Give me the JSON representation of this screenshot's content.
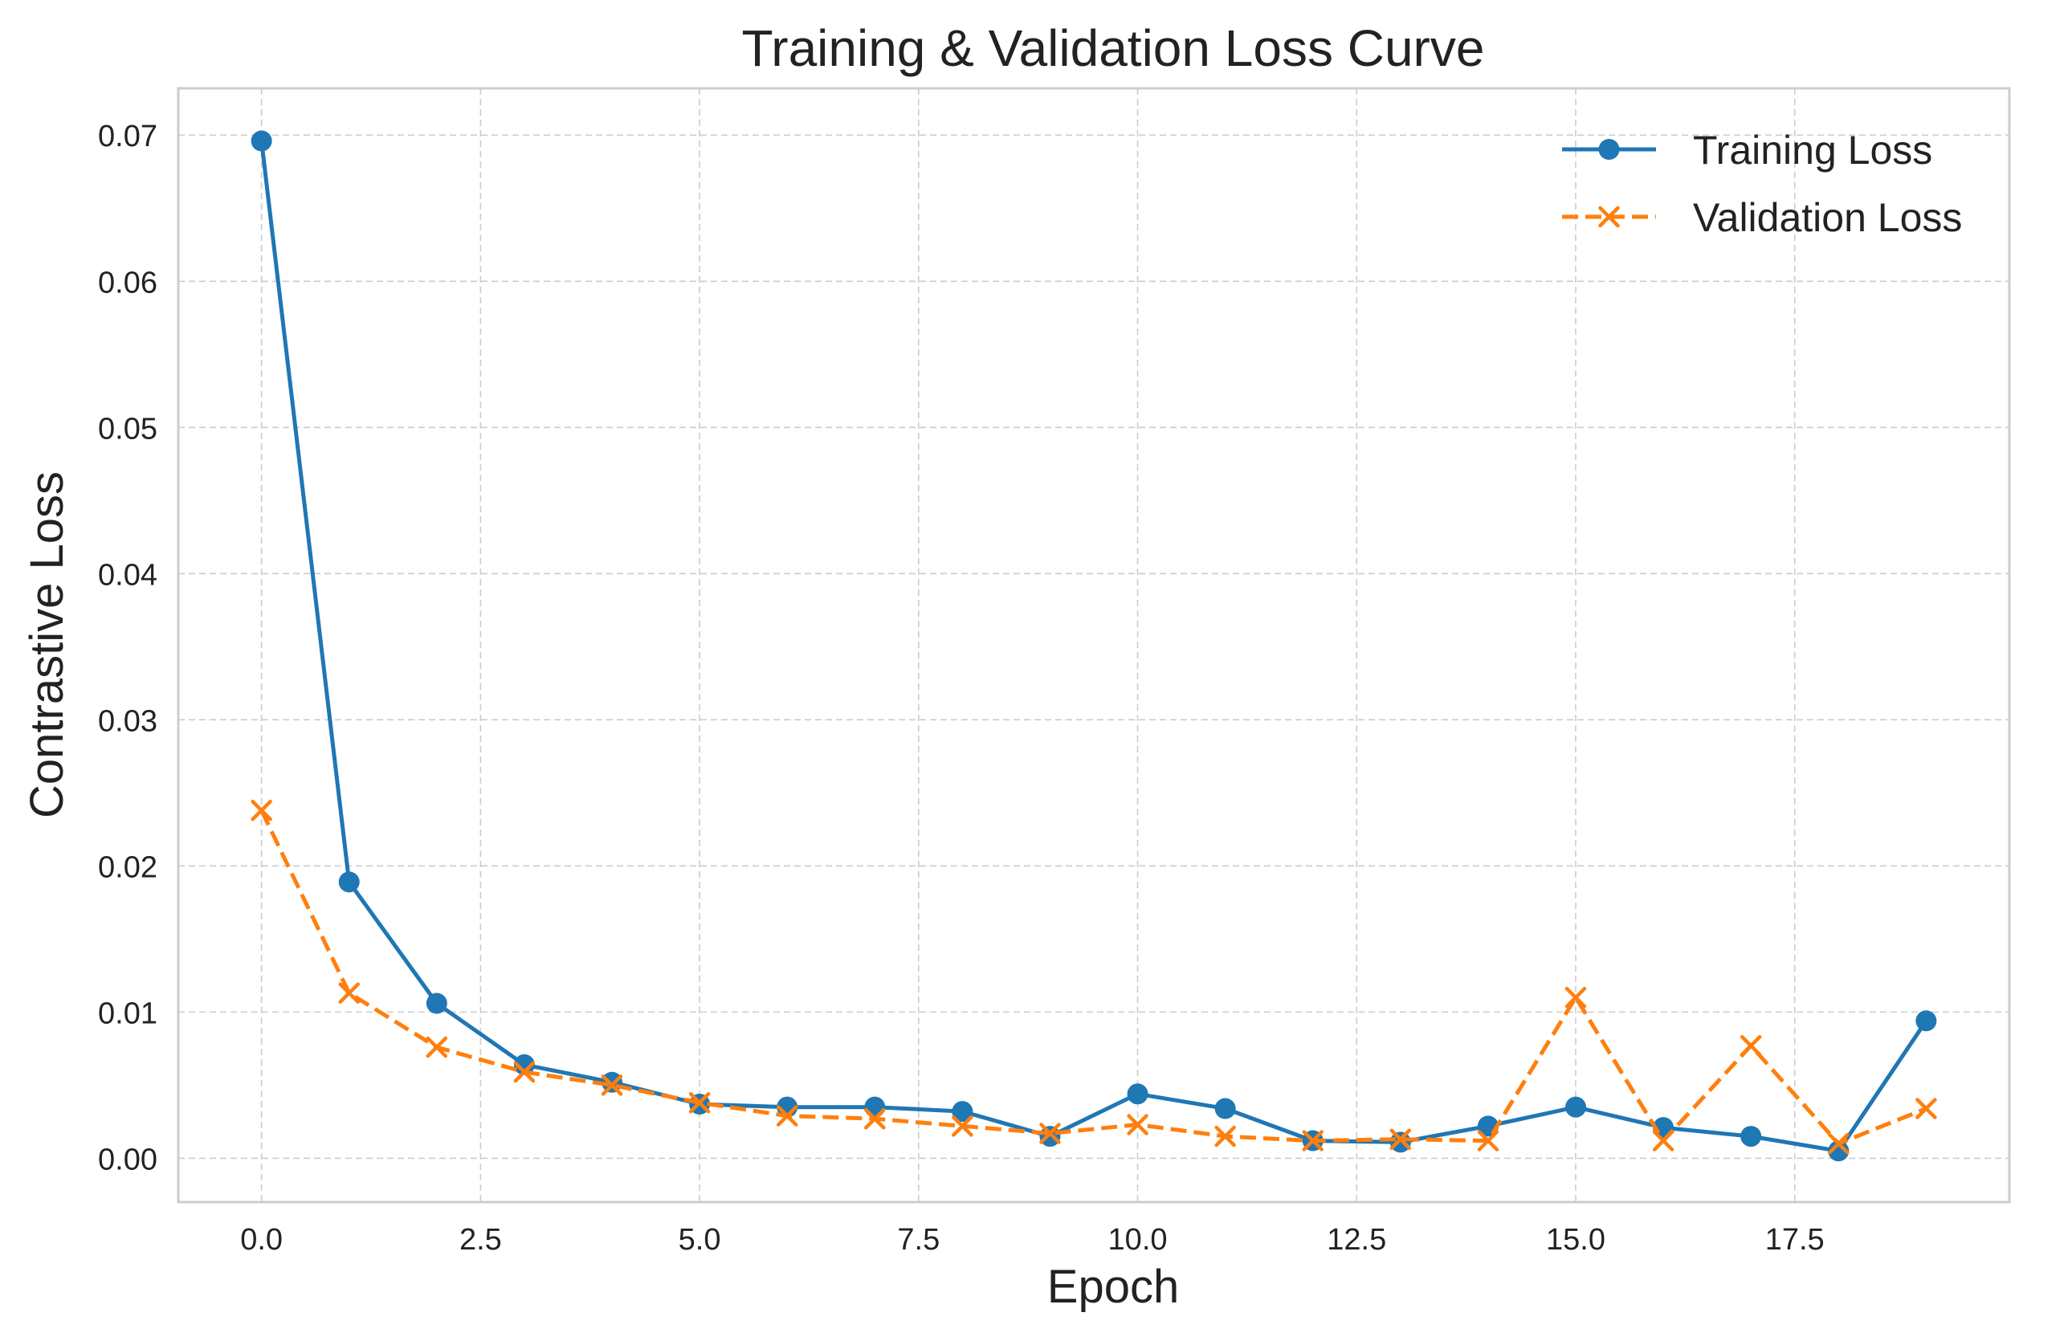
{
  "chart_data": {
    "type": "line",
    "title": "Training & Validation Loss Curve",
    "xlabel": "Epoch",
    "ylabel": "Contrastive Loss",
    "xlim": [
      -0.95,
      19.95
    ],
    "ylim": [
      -0.003,
      0.0732
    ],
    "xticks": [
      0.0,
      2.5,
      5.0,
      7.5,
      10.0,
      12.5,
      15.0,
      17.5
    ],
    "xtick_labels": [
      "0.0",
      "2.5",
      "5.0",
      "7.5",
      "10.0",
      "12.5",
      "15.0",
      "17.5"
    ],
    "yticks": [
      0.0,
      0.01,
      0.02,
      0.03,
      0.04,
      0.05,
      0.06,
      0.07
    ],
    "ytick_labels": [
      "0.00",
      "0.01",
      "0.02",
      "0.03",
      "0.04",
      "0.05",
      "0.06",
      "0.07"
    ],
    "grid": true,
    "legend_position": "top-right",
    "x": [
      0,
      1,
      2,
      3,
      4,
      5,
      6,
      7,
      8,
      9,
      10,
      11,
      12,
      13,
      14,
      15,
      16,
      17,
      18,
      19
    ],
    "series": [
      {
        "name": "Training Loss",
        "color": "#1f77b4",
        "marker": "circle",
        "linestyle": "solid",
        "values": [
          0.0696,
          0.0189,
          0.0106,
          0.0064,
          0.0052,
          0.0037,
          0.0035,
          0.0035,
          0.0032,
          0.0015,
          0.0044,
          0.0034,
          0.0012,
          0.0011,
          0.0022,
          0.0035,
          0.0021,
          0.0015,
          0.0005,
          0.0094
        ]
      },
      {
        "name": "Validation Loss",
        "color": "#ff7f0e",
        "marker": "x",
        "linestyle": "dashed",
        "values": [
          0.0238,
          0.0113,
          0.0076,
          0.0059,
          0.005,
          0.0038,
          0.0029,
          0.0027,
          0.0022,
          0.0017,
          0.0023,
          0.0015,
          0.0012,
          0.0013,
          0.0012,
          0.011,
          0.0012,
          0.0077,
          0.001,
          0.0034
        ]
      }
    ]
  }
}
